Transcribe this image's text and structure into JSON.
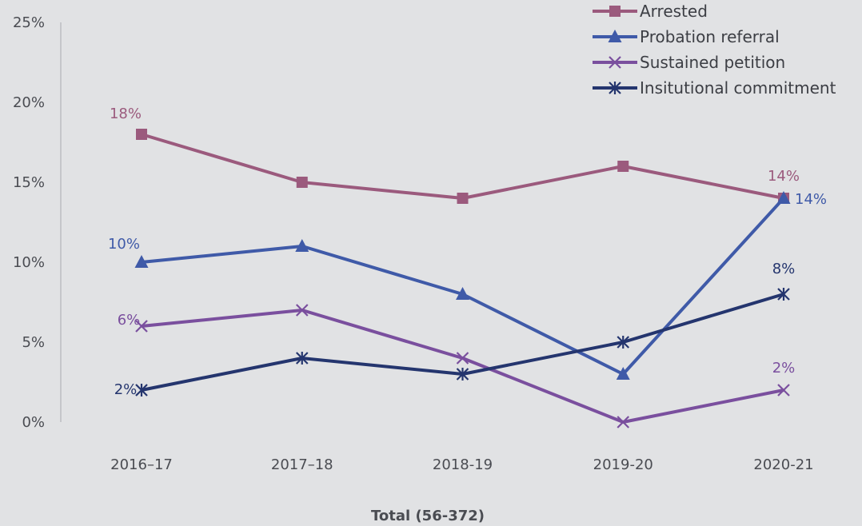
{
  "chart_data": {
    "type": "line",
    "title": "",
    "xlabel": "Total (56-372)",
    "ylabel": "",
    "categories": [
      "2016–17",
      "2017–18",
      "2018-19",
      "2019-20",
      "2020-21"
    ],
    "y_ticks": [
      "0%",
      "5%",
      "10%",
      "15%",
      "20%",
      "25%"
    ],
    "ylim": [
      0,
      25
    ],
    "grid": false,
    "legend_position": "top-right",
    "series": [
      {
        "name": "Arrested",
        "color": "#9b5a7d",
        "marker": "square",
        "values": [
          18,
          15,
          14,
          16,
          14
        ],
        "labels": [
          "18%",
          "",
          "",
          "",
          "14%"
        ]
      },
      {
        "name": "Probation referral",
        "color": "#3f5aa8",
        "marker": "triangle",
        "values": [
          10,
          11,
          8,
          3,
          14
        ],
        "labels": [
          "10%",
          "",
          "",
          "",
          "14%"
        ]
      },
      {
        "name": "Sustained petition",
        "color": "#7a4f9e",
        "marker": "x",
        "values": [
          6,
          7,
          4,
          0,
          2
        ],
        "labels": [
          "6%",
          "",
          "",
          "",
          "2%"
        ]
      },
      {
        "name": "Insitutional commitment",
        "color": "#24356e",
        "marker": "star",
        "values": [
          2,
          4,
          3,
          5,
          8
        ],
        "labels": [
          "2%",
          "",
          "",
          "",
          "8%"
        ]
      }
    ]
  }
}
